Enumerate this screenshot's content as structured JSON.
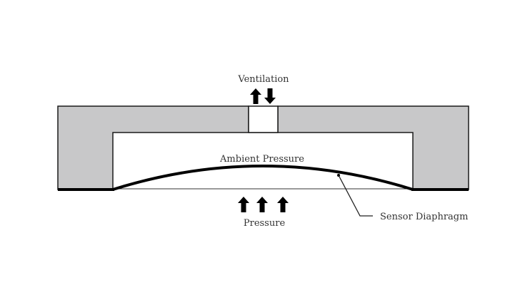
{
  "labels": {
    "ventilation": "Ventilation",
    "ambient_pressure": "Ambient Pressure",
    "pressure": "Pressure",
    "sensor_diaphragm": "Sensor Diaphragm"
  },
  "colors": {
    "housing_fill": "#c8c8c9",
    "outline": "#1a1a1a",
    "background": "#ffffff"
  }
}
